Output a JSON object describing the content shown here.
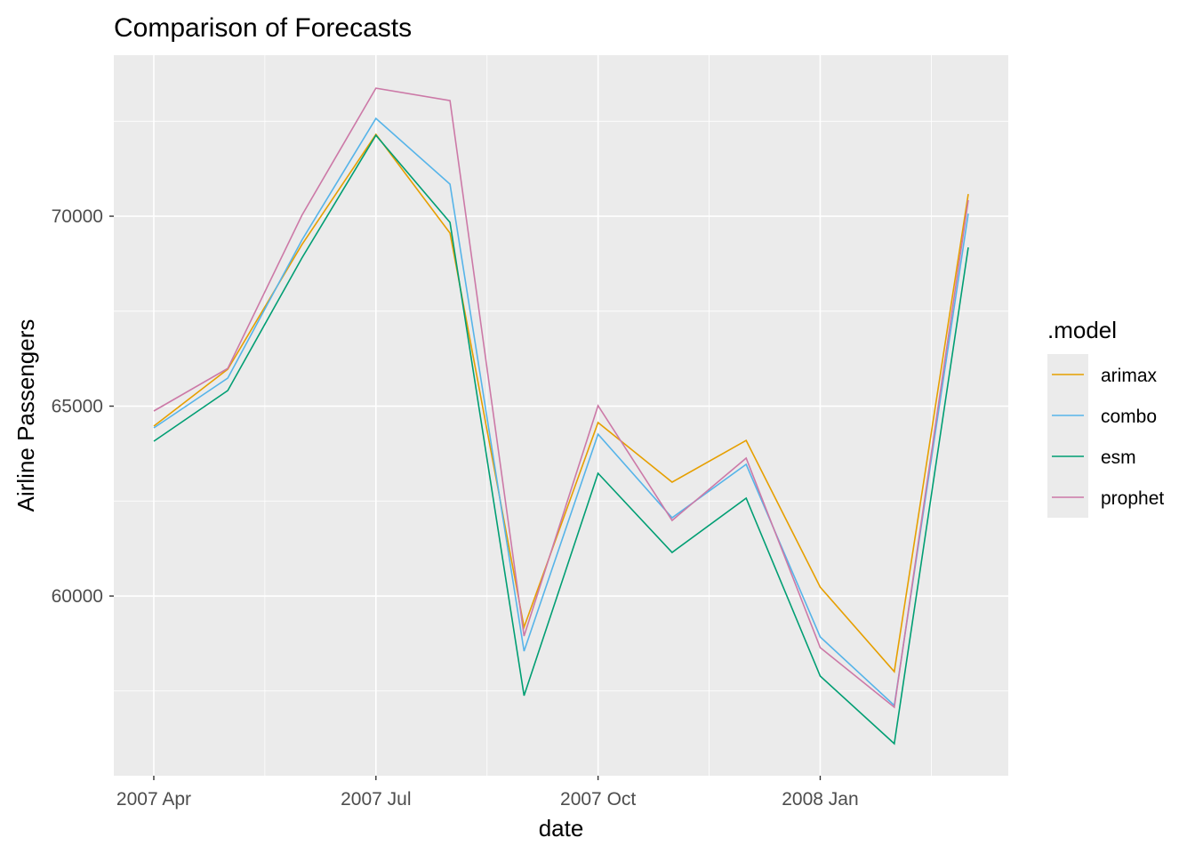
{
  "chart_data": {
    "type": "line",
    "title": "Comparison of Forecasts",
    "xlabel": "date",
    "ylabel": "Airline Passengers",
    "x": [
      "2007 Apr",
      "2007 May",
      "2007 Jun",
      "2007 Jul",
      "2007 Aug",
      "2007 Sep",
      "2007 Oct",
      "2007 Nov",
      "2007 Dec",
      "2008 Jan",
      "2008 Feb",
      "2008 Mar"
    ],
    "x_ticks": [
      {
        "index": 0,
        "label": "2007 Apr"
      },
      {
        "index": 3,
        "label": "2007 Jul"
      },
      {
        "index": 6,
        "label": "2007 Oct"
      },
      {
        "index": 9,
        "label": "2008 Jan"
      }
    ],
    "y_ticks": [
      60000,
      65000,
      70000
    ],
    "ylim": [
      55270,
      74240
    ],
    "xlim": [
      -0.54,
      11.54
    ],
    "grid": true,
    "legend": {
      "title": ".model",
      "position": "right"
    },
    "series": [
      {
        "name": "arimax",
        "color": "#E69F00",
        "values": [
          64473,
          65972,
          69250,
          72155,
          69555,
          59180,
          64567,
          62998,
          64098,
          60234,
          58009,
          70585
        ]
      },
      {
        "name": "combo",
        "color": "#56B4E9",
        "values": [
          64426,
          65738,
          69368,
          72576,
          70843,
          58548,
          64262,
          62061,
          63466,
          58923,
          57119,
          70070
        ]
      },
      {
        "name": "esm",
        "color": "#009E73",
        "values": [
          64075,
          65410,
          68899,
          72131,
          69836,
          57377,
          63232,
          61148,
          62576,
          57892,
          56112,
          69180
        ]
      },
      {
        "name": "prophet",
        "color": "#CC79A7",
        "values": [
          64871,
          65995,
          70023,
          73372,
          73044,
          58946,
          65012,
          61991,
          63630,
          58642,
          57073,
          70422
        ]
      }
    ]
  }
}
